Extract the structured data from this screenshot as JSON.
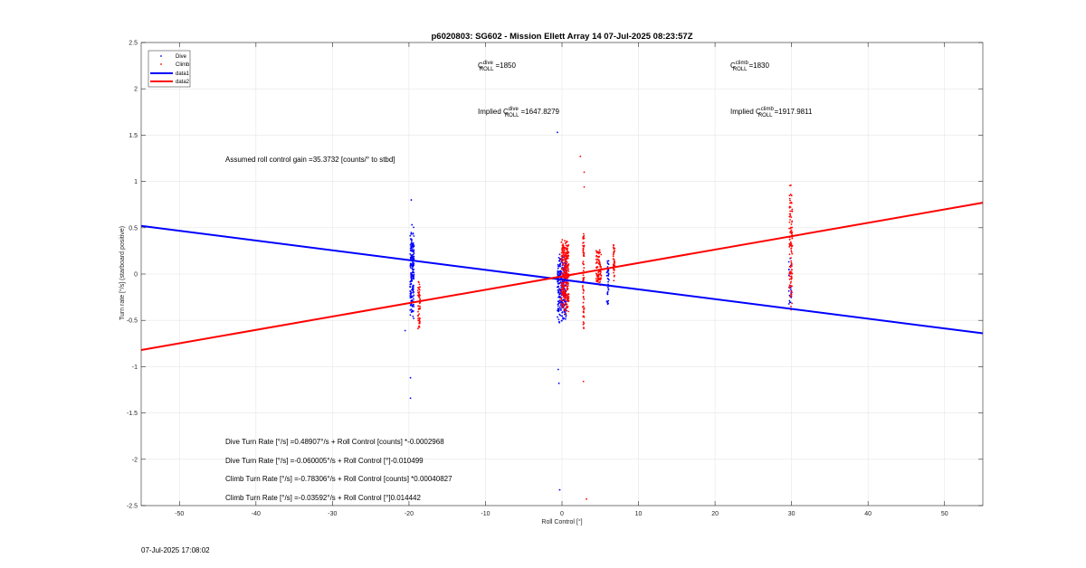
{
  "chart_data": {
    "type": "scatter",
    "title": "p6020803: SG602 - Mission Ellett Array 14 07-Jul-2025 08:23:57Z",
    "xlabel": "Roll Control [°]",
    "ylabel": "Turn rate [°/s] (starboard positive)",
    "xlim": [
      -55,
      55
    ],
    "ylim": [
      -2.5,
      2.5
    ],
    "xticks": [
      -50,
      -40,
      -30,
      -20,
      -10,
      0,
      10,
      20,
      30,
      40,
      50
    ],
    "yticks": [
      -2.5,
      -2,
      -1.5,
      -1,
      -0.5,
      0,
      0.5,
      1,
      1.5,
      2,
      2.5
    ],
    "xtick_labels": [
      "-50",
      "-40",
      "-30",
      "-20",
      "-10",
      "0",
      "10",
      "20",
      "30",
      "40",
      "50"
    ],
    "ytick_labels": [
      "-2.5",
      "-2",
      "-1.5",
      "-1",
      "-0.5",
      "0",
      "0.5",
      "1",
      "1.5",
      "2",
      "2.5"
    ],
    "grid": true,
    "legend_position": "top-left",
    "legend": [
      {
        "name": "Dive",
        "style": "point",
        "color": "#0000ff"
      },
      {
        "name": "Climb",
        "style": "point",
        "color": "#ff0000"
      },
      {
        "name": "data1",
        "style": "line",
        "color": "#0000ff"
      },
      {
        "name": "data2",
        "style": "line",
        "color": "#ff0000"
      }
    ],
    "series": [
      {
        "name": "Dive",
        "color": "#0000ff",
        "clusters": [
          {
            "x": -19.6,
            "x_spread": 0.5,
            "y_min": -0.5,
            "y_max": 0.55,
            "count": 200
          },
          {
            "x": 0.0,
            "x_spread": 1.2,
            "y_min": -0.55,
            "y_max": 0.25,
            "count": 260
          },
          {
            "x": 6.0,
            "x_spread": 0.3,
            "y_min": -0.4,
            "y_max": 0.2,
            "count": 40
          },
          {
            "x": 29.8,
            "x_spread": 0.4,
            "y_min": -0.5,
            "y_max": 0.3,
            "count": 20
          }
        ],
        "points": [
          {
            "x": -19.7,
            "y": 0.8
          },
          {
            "x": -19.8,
            "y": -1.12
          },
          {
            "x": -19.8,
            "y": -1.34
          },
          {
            "x": -20.5,
            "y": -0.61
          },
          {
            "x": -0.6,
            "y": 1.53
          },
          {
            "x": -0.5,
            "y": -1.03
          },
          {
            "x": -0.4,
            "y": -1.18
          },
          {
            "x": -0.3,
            "y": -2.33
          }
        ]
      },
      {
        "name": "Climb",
        "color": "#ff0000",
        "clusters": [
          {
            "x": -18.7,
            "x_spread": 0.3,
            "y_min": -0.6,
            "y_max": -0.05,
            "count": 60
          },
          {
            "x": 0.4,
            "x_spread": 1.0,
            "y_min": -0.45,
            "y_max": 0.4,
            "count": 320
          },
          {
            "x": 2.8,
            "x_spread": 0.2,
            "y_min": -0.68,
            "y_max": 0.53,
            "count": 70
          },
          {
            "x": 4.8,
            "x_spread": 0.7,
            "y_min": -0.15,
            "y_max": 0.3,
            "count": 90
          },
          {
            "x": 6.8,
            "x_spread": 0.2,
            "y_min": -0.1,
            "y_max": 0.35,
            "count": 40
          },
          {
            "x": 29.9,
            "x_spread": 0.4,
            "y_min": -0.45,
            "y_max": 1.0,
            "count": 110
          }
        ],
        "points": [
          {
            "x": 2.4,
            "y": 1.27
          },
          {
            "x": 2.9,
            "y": 1.1
          },
          {
            "x": 2.9,
            "y": 0.94
          },
          {
            "x": 2.8,
            "y": -1.16
          },
          {
            "x": 3.2,
            "y": -2.43
          }
        ]
      }
    ],
    "lines": [
      {
        "name": "data1",
        "color": "#0000ff",
        "x": [
          -55,
          55
        ],
        "y": [
          0.52,
          -0.64
        ]
      },
      {
        "name": "data2",
        "color": "#ff0000",
        "x": [
          -55,
          55
        ],
        "y": [
          -0.82,
          0.77
        ]
      }
    ],
    "annotations": {
      "c_dive": {
        "base": "C",
        "sup": "dive",
        "sub": "ROLL",
        "value": "=1850"
      },
      "c_climb": {
        "base": "C",
        "sup": "climb",
        "sub": "ROLL",
        "value": "=1830"
      },
      "implied_dive": {
        "prefix": "Implied ",
        "base": "C",
        "sup": "dive",
        "sub": "ROLL",
        "value": "=1647.8279"
      },
      "implied_climb": {
        "prefix": "Implied ",
        "base": "C",
        "sup": "climb",
        "sub": "ROLL",
        "value": "=1917.9811"
      },
      "gain": "Assumed roll control gain =35.3732 [counts/° to stbd]",
      "eq1": "Dive Turn Rate [°/s] =0.48907°/s + Roll Control [counts] *-0.0002968",
      "eq2": "Dive Turn Rate [°/s] =-0.060005°/s + Roll Control [°]-0.010499",
      "eq3": "Climb Turn Rate [°/s] =-0.78306°/s + Roll Control [counts] *0.00040827",
      "eq4": "Climb Turn Rate [°/s] =-0.03592°/s + Roll Control [°]0.014442"
    }
  },
  "footer_timestamp": "07-Jul-2025 17:08:02"
}
